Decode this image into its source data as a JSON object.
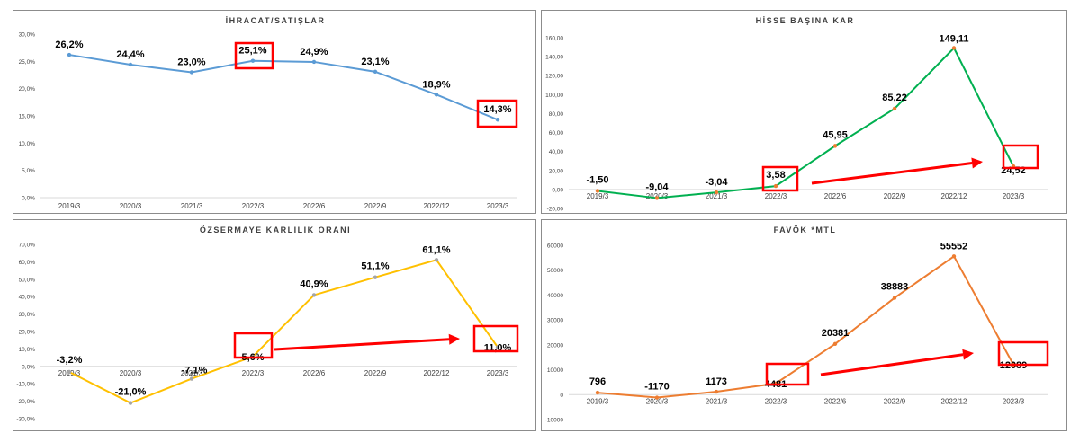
{
  "chart_data": [
    {
      "id": "c0",
      "type": "line",
      "title": "İHRACAT/SATIŞLAR",
      "categories": [
        "2019/3",
        "2020/3",
        "2021/3",
        "2022/3",
        "2022/6",
        "2022/9",
        "2022/12",
        "2023/3"
      ],
      "values": [
        26.2,
        24.4,
        23.0,
        25.1,
        24.9,
        23.1,
        18.9,
        14.3
      ],
      "data_labels": [
        "26,2%",
        "24,4%",
        "23,0%",
        "25,1%",
        "24,9%",
        "23,1%",
        "18,9%",
        "14,3%"
      ],
      "yticks": [
        0,
        5,
        10,
        15,
        20,
        25,
        30
      ],
      "ytick_labels": [
        "0,0%",
        "5,0%",
        "10,0%",
        "15,0%",
        "20,0%",
        "25,0%",
        "30,0%"
      ],
      "ylim": [
        0,
        30
      ],
      "line_color": "#5b9bd5",
      "marker_color": "#5b9bd5",
      "highlight_color": "#ff0000",
      "highlighted_indices": [
        3,
        7
      ],
      "arrow": false,
      "grid": false
    },
    {
      "id": "c1",
      "type": "line",
      "title": "HİSSE BAŞINA KAR",
      "categories": [
        "2019/3",
        "2020/3",
        "2021/3",
        "2022/3",
        "2022/6",
        "2022/9",
        "2022/12",
        "2023/3"
      ],
      "values": [
        -1.5,
        -9.04,
        -3.04,
        3.58,
        45.95,
        85.22,
        149.11,
        24.52
      ],
      "data_labels": [
        "-1,50",
        "-9,04",
        "-3,04",
        "3,58",
        "45,95",
        "85,22",
        "149,11",
        "24,52"
      ],
      "yticks": [
        -20,
        0,
        20,
        40,
        60,
        80,
        100,
        120,
        140,
        160
      ],
      "ytick_labels": [
        "-20,00",
        "0,00",
        "20,00",
        "40,00",
        "60,00",
        "80,00",
        "100,00",
        "120,00",
        "140,00",
        "160,00"
      ],
      "ylim": [
        -20,
        160
      ],
      "line_color": "#00b050",
      "marker_color": "#ed7d31",
      "highlight_color": "#ff0000",
      "highlighted_indices": [
        3,
        7
      ],
      "arrow": true,
      "grid": false
    },
    {
      "id": "c2",
      "type": "line",
      "title": "ÖZSERMAYE KARLILIK ORANI",
      "categories": [
        "2019/3",
        "2020/3",
        "2021/3",
        "2022/3",
        "2022/6",
        "2022/9",
        "2022/12",
        "2023/3"
      ],
      "values": [
        -3.2,
        -21.0,
        -7.1,
        5.6,
        40.9,
        51.1,
        61.1,
        11.0
      ],
      "data_labels": [
        "-3,2%",
        "-21,0%",
        "-7,1%",
        "5,6%",
        "40,9%",
        "51,1%",
        "61,1%",
        "11,0%"
      ],
      "yticks": [
        -30,
        -20,
        -10,
        0,
        10,
        20,
        30,
        40,
        50,
        60,
        70
      ],
      "ytick_labels": [
        "-30,0%",
        "-20,0%",
        "-10,0%",
        "0,0%",
        "10,0%",
        "20,0%",
        "30,0%",
        "40,0%",
        "50,0%",
        "60,0%",
        "70,0%"
      ],
      "ylim": [
        -30,
        70
      ],
      "line_color": "#ffc000",
      "marker_color": "#a5a5a5",
      "highlight_color": "#ff0000",
      "highlighted_indices": [
        3,
        7
      ],
      "arrow": true,
      "grid": false
    },
    {
      "id": "c3",
      "type": "line",
      "title": "FAVÖK *MTL",
      "categories": [
        "2019/3",
        "2020/3",
        "2021/3",
        "2022/3",
        "2022/6",
        "2022/9",
        "2022/12",
        "2023/3"
      ],
      "values": [
        796,
        -1170,
        1173,
        4481,
        20381,
        38883,
        55552,
        12089
      ],
      "data_labels": [
        "796",
        "-1170",
        "1173",
        "4481",
        "20381",
        "38883",
        "55552",
        "12089"
      ],
      "yticks": [
        -10000,
        0,
        10000,
        20000,
        30000,
        40000,
        50000,
        60000
      ],
      "ytick_labels": [
        "-10000",
        "0",
        "10000",
        "20000",
        "30000",
        "40000",
        "50000",
        "60000"
      ],
      "ylim": [
        -10000,
        60000
      ],
      "line_color": "#ed7d31",
      "marker_color": "#ed7d31",
      "highlight_color": "#ff0000",
      "highlighted_indices": [
        3,
        7
      ],
      "arrow": true,
      "grid": false
    }
  ]
}
